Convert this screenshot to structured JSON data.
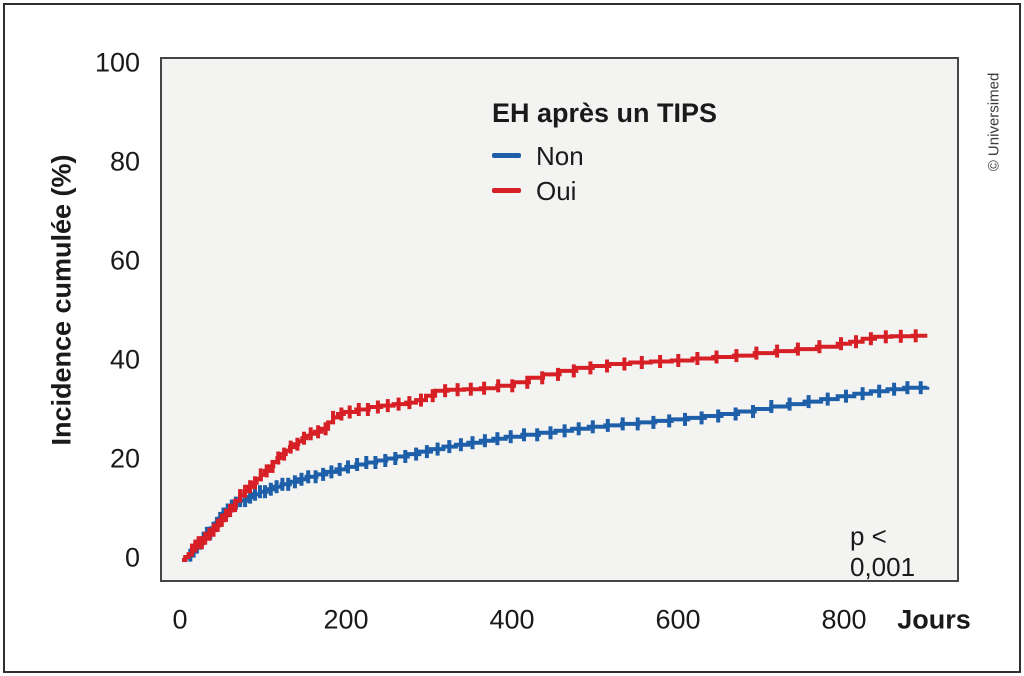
{
  "credit": "© Universimed",
  "chart_data": {
    "type": "line",
    "subtype": "cumulative-incidence-step-kaplan-meier",
    "title": "",
    "legend_title": "EH après un TIPS",
    "xlabel": "Jours",
    "ylabel": "Incidence cumulée (%)",
    "x_ticks": [
      0,
      200,
      400,
      600,
      800
    ],
    "y_ticks": [
      0,
      20,
      40,
      60,
      80,
      100
    ],
    "xlim": [
      0,
      900
    ],
    "ylim": [
      0,
      100
    ],
    "grid": false,
    "legend_position": "inside-top-center",
    "annotation": "p < 0,001",
    "colors": {
      "plot_background": "#f3f3f1",
      "text": "#1a1a1a",
      "border": "#454545"
    },
    "series": [
      {
        "name": "Non",
        "color": "#1e5fa9",
        "points": [
          [
            0,
            0
          ],
          [
            4,
            0.5
          ],
          [
            8,
            1
          ],
          [
            12,
            1.8
          ],
          [
            16,
            2.6
          ],
          [
            20,
            3.4
          ],
          [
            25,
            4.4
          ],
          [
            30,
            5.4
          ],
          [
            35,
            6.4
          ],
          [
            40,
            7.4
          ],
          [
            45,
            8.4
          ],
          [
            50,
            9.3
          ],
          [
            55,
            10.1
          ],
          [
            60,
            10.9
          ],
          [
            65,
            11.5
          ],
          [
            70,
            12
          ],
          [
            78,
            12.7
          ],
          [
            86,
            13.3
          ],
          [
            94,
            13.8
          ],
          [
            102,
            14.3
          ],
          [
            110,
            14.8
          ],
          [
            120,
            15.3
          ],
          [
            130,
            15.8
          ],
          [
            140,
            16.3
          ],
          [
            150,
            16.8
          ],
          [
            162,
            17.3
          ],
          [
            174,
            17.8
          ],
          [
            186,
            18.3
          ],
          [
            198,
            18.8
          ],
          [
            210,
            19.3
          ],
          [
            222,
            19.7
          ],
          [
            234,
            20.1
          ],
          [
            246,
            20.5
          ],
          [
            258,
            20.9
          ],
          [
            272,
            21.4
          ],
          [
            286,
            21.9
          ],
          [
            300,
            22.4
          ],
          [
            315,
            22.9
          ],
          [
            330,
            23.3
          ],
          [
            345,
            23.7
          ],
          [
            360,
            24.1
          ],
          [
            375,
            24.5
          ],
          [
            390,
            24.9
          ],
          [
            410,
            25.3
          ],
          [
            430,
            25.7
          ],
          [
            450,
            26.1
          ],
          [
            470,
            26.5
          ],
          [
            490,
            26.9
          ],
          [
            510,
            27.2
          ],
          [
            530,
            27.5
          ],
          [
            550,
            27.8
          ],
          [
            570,
            28.1
          ],
          [
            590,
            28.4
          ],
          [
            610,
            28.7
          ],
          [
            630,
            29.1
          ],
          [
            650,
            29.5
          ],
          [
            670,
            30
          ],
          [
            690,
            30.5
          ],
          [
            710,
            31
          ],
          [
            730,
            31.5
          ],
          [
            750,
            32
          ],
          [
            770,
            32.5
          ],
          [
            790,
            33.1
          ],
          [
            810,
            33.6
          ],
          [
            830,
            34.1
          ],
          [
            850,
            34.5
          ],
          [
            870,
            34.8
          ],
          [
            898,
            35
          ]
        ],
        "censor_days": [
          10,
          14,
          18,
          22,
          26,
          30,
          34,
          38,
          42,
          46,
          50,
          55,
          60,
          65,
          70,
          76,
          82,
          88,
          94,
          100,
          107,
          114,
          121,
          128,
          136,
          144,
          152,
          161,
          170,
          180,
          190,
          200,
          211,
          222,
          233,
          245,
          257,
          269,
          282,
          295,
          308,
          322,
          336,
          350,
          365,
          380,
          396,
          412,
          428,
          444,
          461,
          478,
          495,
          513,
          531,
          549,
          568,
          587,
          606,
          626,
          646,
          667,
          688,
          710,
          732,
          755,
          778,
          800,
          820,
          840,
          858,
          874,
          890
        ]
      },
      {
        "name": "Oui",
        "color": "#d71f26",
        "points": [
          [
            0,
            0
          ],
          [
            4,
            0.6
          ],
          [
            8,
            1.2
          ],
          [
            12,
            2
          ],
          [
            16,
            2.8
          ],
          [
            20,
            3.5
          ],
          [
            25,
            4.4
          ],
          [
            30,
            5.2
          ],
          [
            35,
            6
          ],
          [
            40,
            7
          ],
          [
            45,
            8
          ],
          [
            50,
            9
          ],
          [
            55,
            10
          ],
          [
            60,
            11
          ],
          [
            65,
            12
          ],
          [
            70,
            13
          ],
          [
            75,
            13.9
          ],
          [
            80,
            14.8
          ],
          [
            85,
            15.6
          ],
          [
            90,
            16.4
          ],
          [
            95,
            17.2
          ],
          [
            100,
            18
          ],
          [
            105,
            18.9
          ],
          [
            110,
            19.8
          ],
          [
            115,
            20.6
          ],
          [
            120,
            21.4
          ],
          [
            125,
            22.1
          ],
          [
            130,
            22.8
          ],
          [
            135,
            23.4
          ],
          [
            140,
            24
          ],
          [
            145,
            24.6
          ],
          [
            150,
            25.1
          ],
          [
            155,
            25.5
          ],
          [
            160,
            25.9
          ],
          [
            168,
            26.5
          ],
          [
            176,
            27.8
          ],
          [
            182,
            28.8
          ],
          [
            188,
            29.5
          ],
          [
            195,
            29.9
          ],
          [
            210,
            30.4
          ],
          [
            225,
            30.9
          ],
          [
            240,
            31.2
          ],
          [
            255,
            31.5
          ],
          [
            270,
            31.8
          ],
          [
            282,
            32.3
          ],
          [
            294,
            33.2
          ],
          [
            305,
            34.2
          ],
          [
            320,
            34.4
          ],
          [
            340,
            34.5
          ],
          [
            360,
            34.7
          ],
          [
            380,
            35.2
          ],
          [
            400,
            35.9
          ],
          [
            418,
            36.8
          ],
          [
            435,
            37.5
          ],
          [
            455,
            38.2
          ],
          [
            475,
            38.8
          ],
          [
            495,
            39.2
          ],
          [
            515,
            39.6
          ],
          [
            540,
            39.9
          ],
          [
            565,
            40.1
          ],
          [
            590,
            40.3
          ],
          [
            615,
            40.7
          ],
          [
            640,
            41
          ],
          [
            665,
            41.3
          ],
          [
            690,
            41.8
          ],
          [
            715,
            42.2
          ],
          [
            740,
            42.6
          ],
          [
            765,
            43.1
          ],
          [
            790,
            43.7
          ],
          [
            805,
            44.1
          ],
          [
            820,
            44.7
          ],
          [
            835,
            45.1
          ],
          [
            855,
            45.2
          ],
          [
            880,
            45.3
          ],
          [
            898,
            45.3
          ]
        ],
        "censor_days": [
          12,
          16,
          20,
          24,
          28,
          33,
          38,
          43,
          48,
          53,
          58,
          64,
          70,
          76,
          82,
          88,
          95,
          102,
          109,
          116,
          123,
          131,
          139,
          147,
          155,
          164,
          173,
          182,
          192,
          202,
          213,
          224,
          236,
          248,
          261,
          274,
          288,
          302,
          317,
          332,
          348,
          364,
          381,
          398,
          416,
          434,
          453,
          472,
          492,
          512,
          533,
          554,
          576,
          598,
          621,
          644,
          668,
          692,
          717,
          742,
          768,
          794,
          812,
          830,
          848,
          866,
          884
        ]
      }
    ]
  }
}
